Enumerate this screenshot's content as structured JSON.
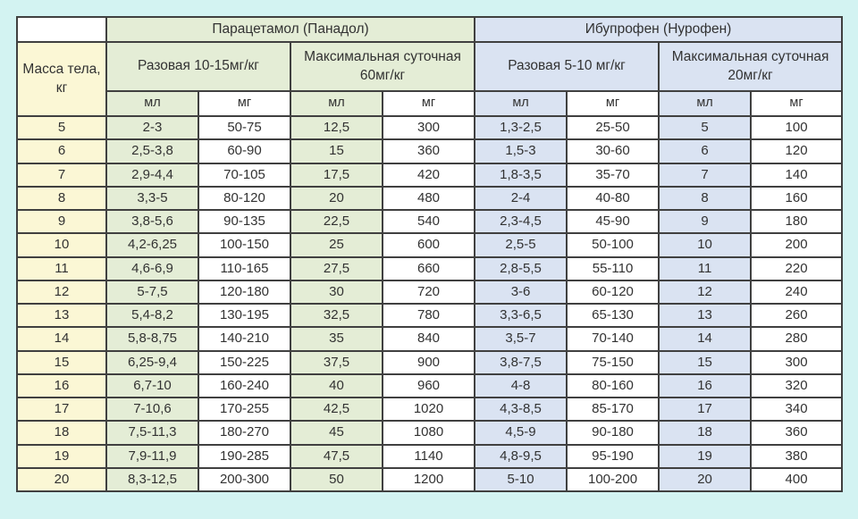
{
  "page": {
    "background_color": "#d3f3f2",
    "border_color": "#404040",
    "weight_column_color": "#fbf7d5",
    "paracetamol_color": "#e4edd6",
    "ibuprofen_color": "#dae3f2"
  },
  "table": {
    "corner_label": "",
    "weight_header": "Масса тела,\nкг",
    "groups": [
      {
        "label": "Парацетамол (Панадол)"
      },
      {
        "label": "Ибупрофен (Нурофен)"
      }
    ],
    "subgroups": [
      {
        "label": "Разовая 10-15мг/кг"
      },
      {
        "label": "Максимальная суточная\n60мг/кг"
      },
      {
        "label": "Разовая 5-10 мг/кг"
      },
      {
        "label": "Максимальная суточная\n20мг/кг"
      }
    ],
    "unit_headers": [
      "мл",
      "мг",
      "мл",
      "мг",
      "мл",
      "мг",
      "мл",
      "мг"
    ],
    "rows": [
      [
        "5",
        "2-3",
        "50-75",
        "12,5",
        "300",
        "1,3-2,5",
        "25-50",
        "5",
        "100"
      ],
      [
        "6",
        "2,5-3,8",
        "60-90",
        "15",
        "360",
        "1,5-3",
        "30-60",
        "6",
        "120"
      ],
      [
        "7",
        "2,9-4,4",
        "70-105",
        "17,5",
        "420",
        "1,8-3,5",
        "35-70",
        "7",
        "140"
      ],
      [
        "8",
        "3,3-5",
        "80-120",
        "20",
        "480",
        "2-4",
        "40-80",
        "8",
        "160"
      ],
      [
        "9",
        "3,8-5,6",
        "90-135",
        "22,5",
        "540",
        "2,3-4,5",
        "45-90",
        "9",
        "180"
      ],
      [
        "10",
        "4,2-6,25",
        "100-150",
        "25",
        "600",
        "2,5-5",
        "50-100",
        "10",
        "200"
      ],
      [
        "11",
        "4,6-6,9",
        "110-165",
        "27,5",
        "660",
        "2,8-5,5",
        "55-110",
        "11",
        "220"
      ],
      [
        "12",
        "5-7,5",
        "120-180",
        "30",
        "720",
        "3-6",
        "60-120",
        "12",
        "240"
      ],
      [
        "13",
        "5,4-8,2",
        "130-195",
        "32,5",
        "780",
        "3,3-6,5",
        "65-130",
        "13",
        "260"
      ],
      [
        "14",
        "5,8-8,75",
        "140-210",
        "35",
        "840",
        "3,5-7",
        "70-140",
        "14",
        "280"
      ],
      [
        "15",
        "6,25-9,4",
        "150-225",
        "37,5",
        "900",
        "3,8-7,5",
        "75-150",
        "15",
        "300"
      ],
      [
        "16",
        "6,7-10",
        "160-240",
        "40",
        "960",
        "4-8",
        "80-160",
        "16",
        "320"
      ],
      [
        "17",
        "7-10,6",
        "170-255",
        "42,5",
        "1020",
        "4,3-8,5",
        "85-170",
        "17",
        "340"
      ],
      [
        "18",
        "7,5-11,3",
        "180-270",
        "45",
        "1080",
        "4,5-9",
        "90-180",
        "18",
        "360"
      ],
      [
        "19",
        "7,9-11,9",
        "190-285",
        "47,5",
        "1140",
        "4,8-9,5",
        "95-190",
        "19",
        "380"
      ],
      [
        "20",
        "8,3-12,5",
        "200-300",
        "50",
        "1200",
        "5-10",
        "100-200",
        "20",
        "400"
      ]
    ]
  }
}
